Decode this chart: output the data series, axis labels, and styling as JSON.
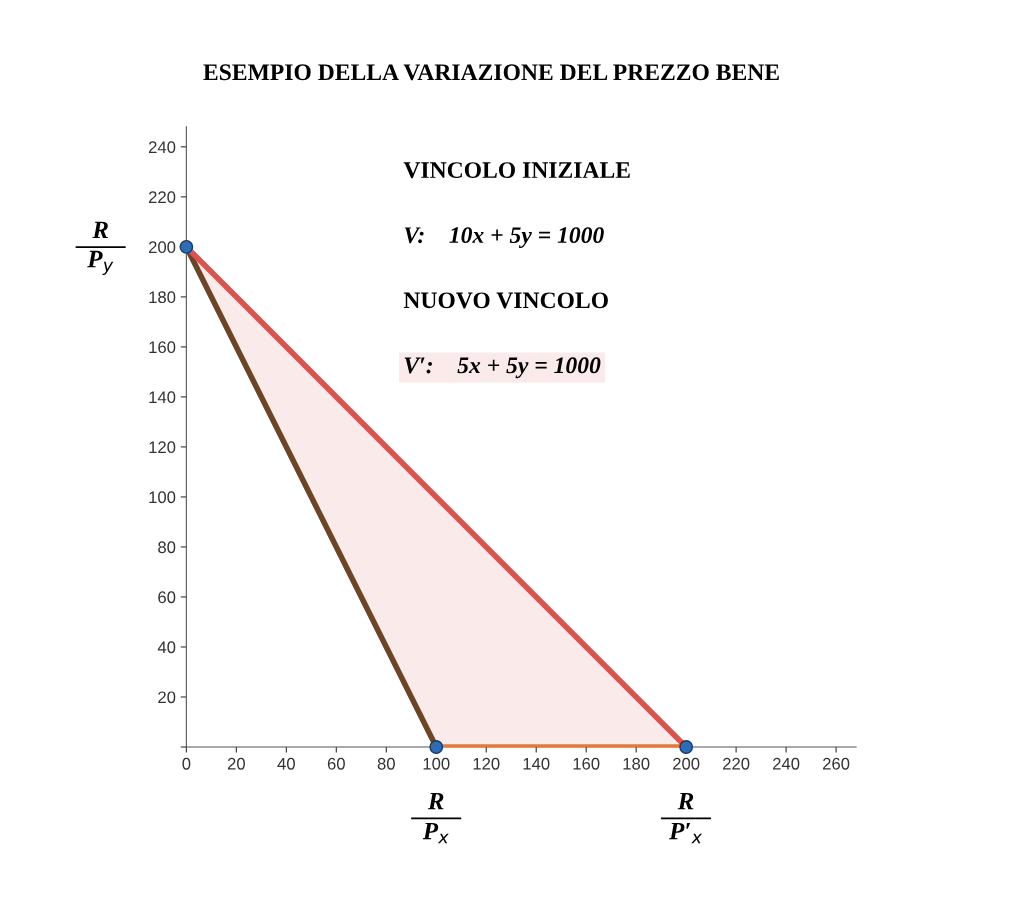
{
  "chart_data": {
    "type": "line",
    "title": "ESEMPIO DELLA VARIAZIONE DEL PREZZO BENE",
    "series": [
      {
        "color": "#6e4426",
        "x": [
          0,
          100
        ],
        "values": [
          200,
          0
        ]
      },
      {
        "color": "#e07b39",
        "x": [
          100,
          200
        ],
        "values": [
          0,
          0
        ]
      },
      {
        "color": "#d9534f",
        "x": [
          0,
          100,
          200
        ],
        "values": [
          200,
          100,
          0
        ],
        "lower": [
          200,
          0,
          0
        ],
        "upper": [
          200,
          100,
          0
        ]
      },
      {
        "type": "scatter",
        "color": "#2e6db5",
        "marker": "circle",
        "x": [
          0,
          100,
          200
        ],
        "values": [
          200,
          0,
          0
        ]
      }
    ],
    "xlim": [
      0,
      268
    ],
    "ylim": [
      0,
      248
    ],
    "xticks": [
      0,
      20,
      40,
      60,
      80,
      100,
      120,
      140,
      160,
      180,
      200,
      220,
      240,
      260
    ],
    "yticks": [
      {
        "value": 0,
        "label": null
      },
      20,
      40,
      60,
      80,
      100,
      120,
      140,
      160,
      180,
      200,
      220,
      240
    ],
    "grid": false,
    "annotations": [
      "VINCOLO INIZIALE",
      "V:    10x + 5y = 1000",
      "NUOVO VINCOLO",
      "V′:    5x + 5y = 1000",
      "R",
      "P$_{y}$",
      "R",
      "P$_{x}$",
      "R",
      "P′$_{x}$"
    ]
  }
}
